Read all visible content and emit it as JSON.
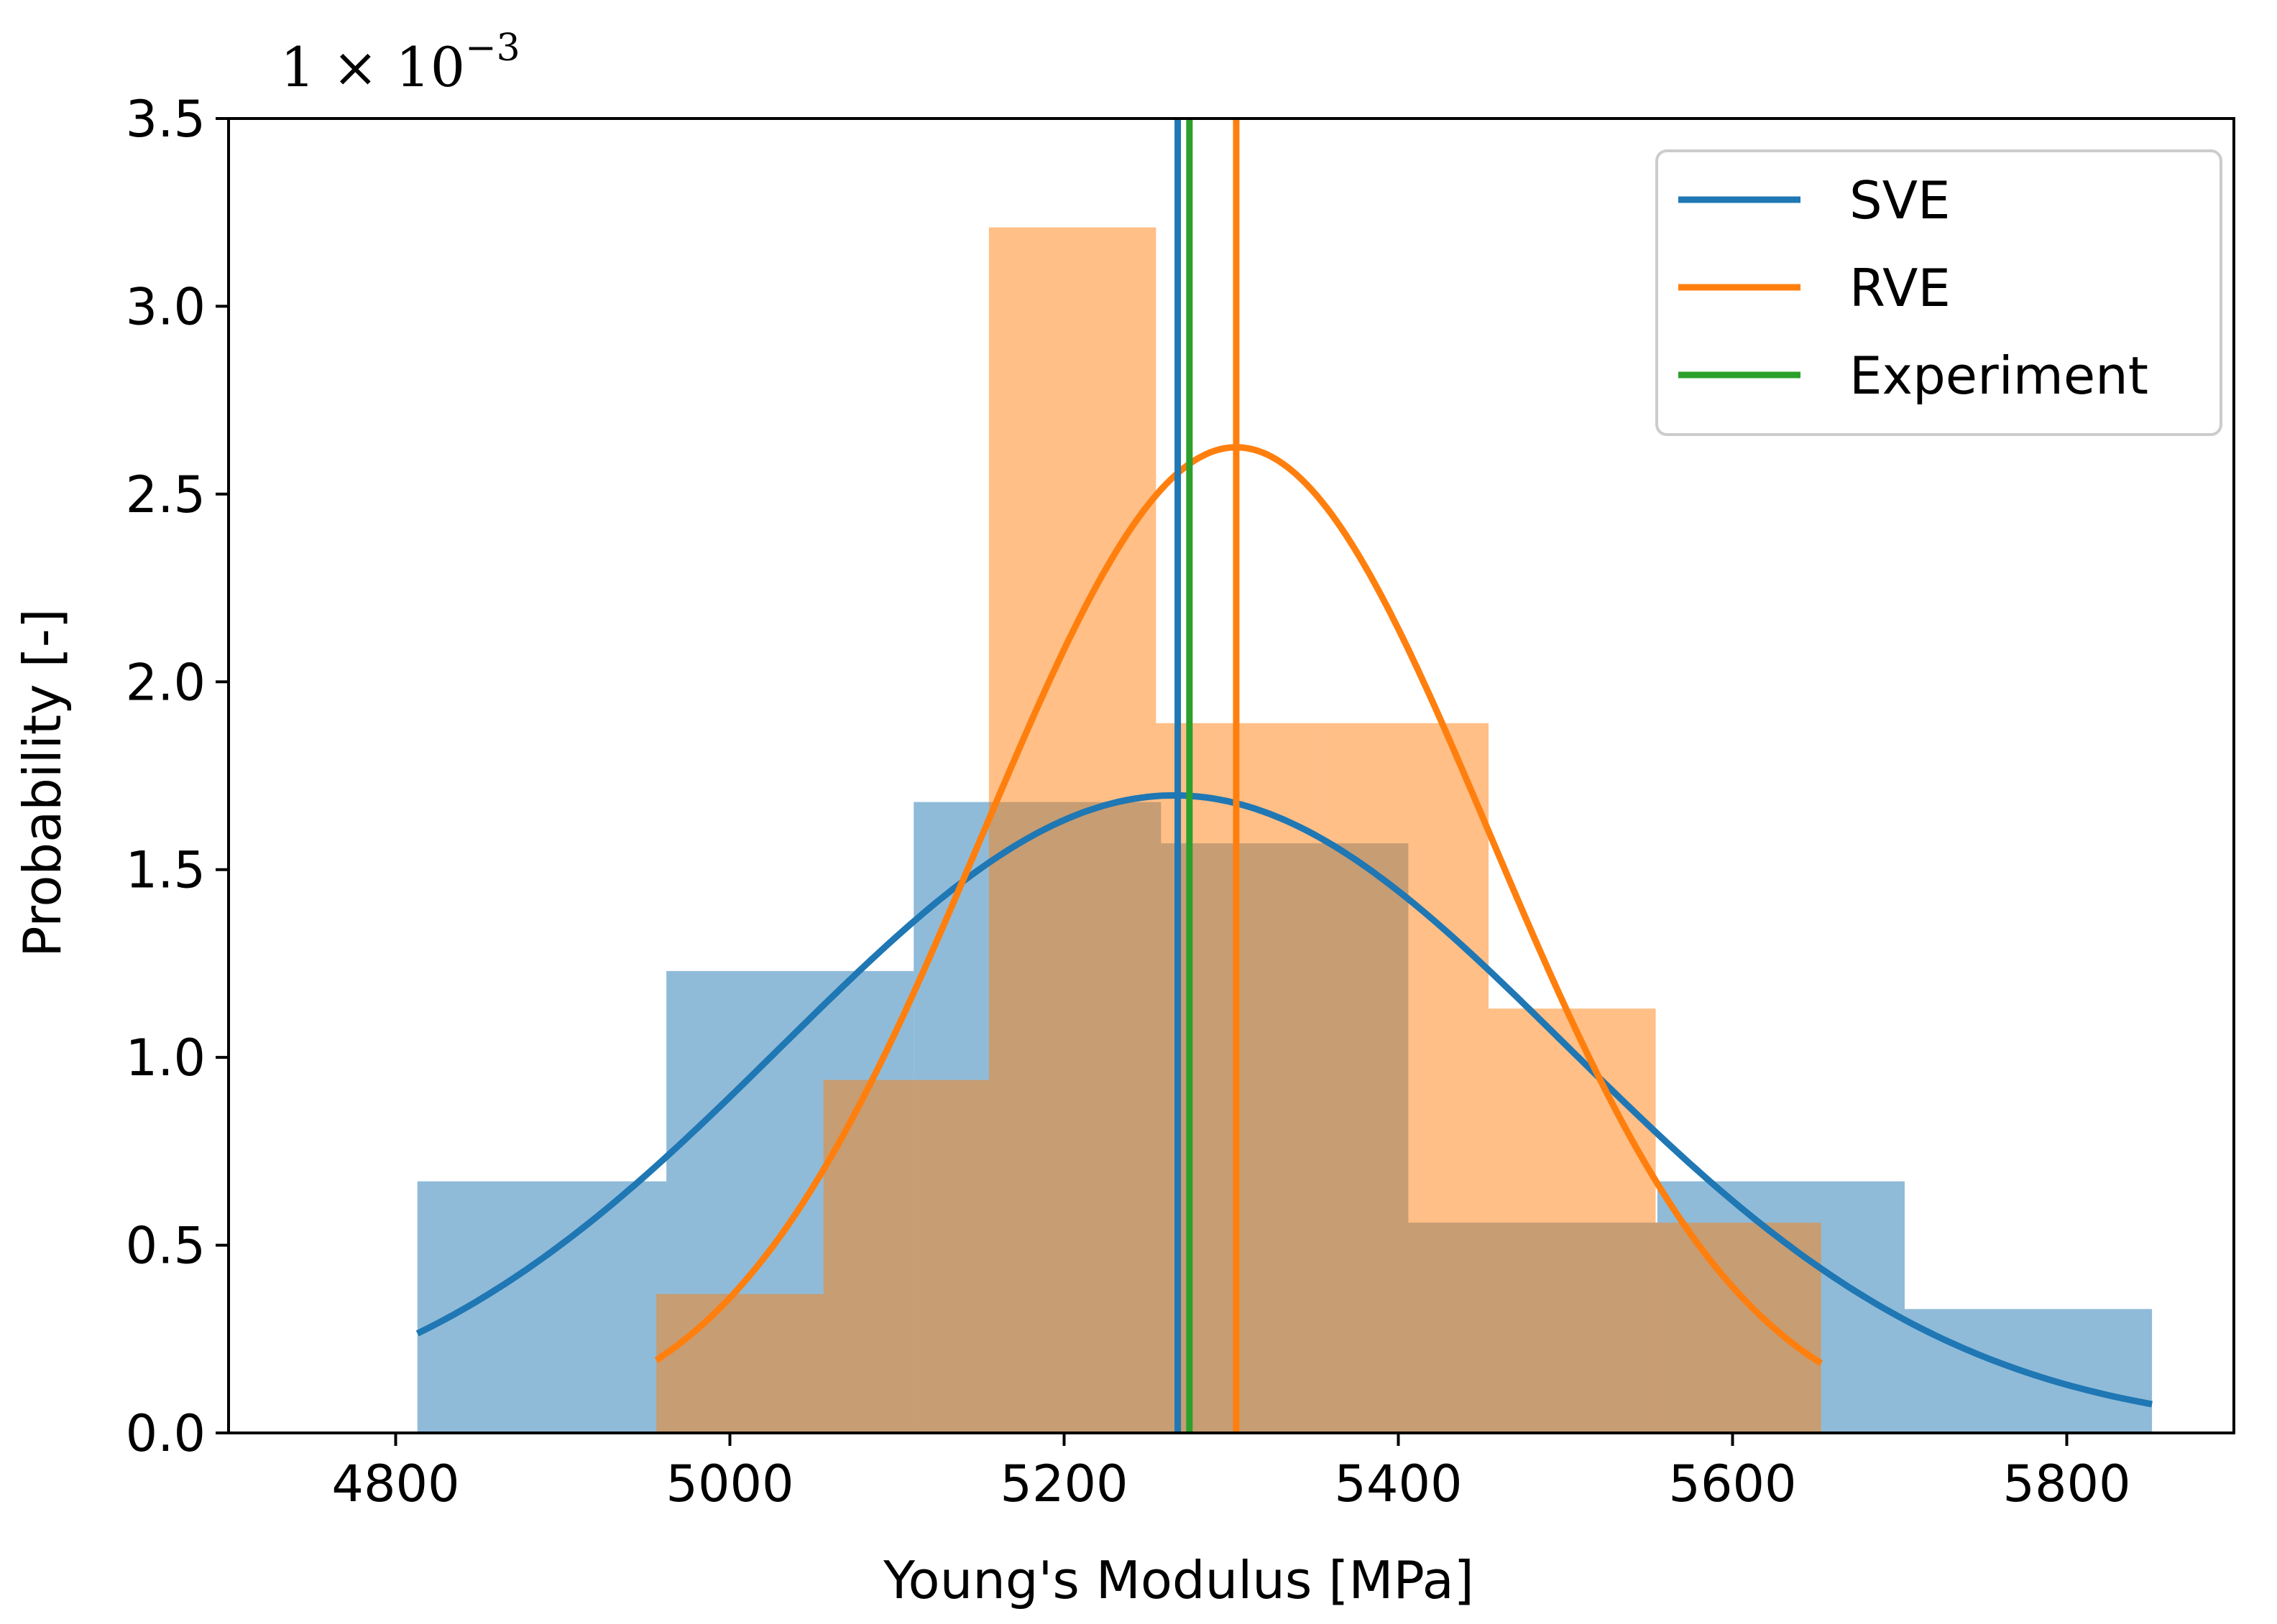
{
  "chart_data": {
    "type": "bar",
    "title": "",
    "xlabel": "Young's Modulus [MPa]",
    "ylabel": "Probability [-]",
    "scale_label": "1 × 10",
    "scale_exponent": "−3",
    "xlim": [
      4700,
      5900
    ],
    "ylim": [
      0,
      3.5
    ],
    "xticks": [
      4800,
      5000,
      5200,
      5400,
      5600,
      5800
    ],
    "yticks": [
      "0.0",
      "0.5",
      "1.0",
      "1.5",
      "2.0",
      "2.5",
      "3.0",
      "3.5"
    ],
    "colors": {
      "SVE": "#1f77b4",
      "RVE": "#ff7f0e",
      "Experiment": "#2ca02c"
    },
    "histograms": [
      {
        "name": "SVE",
        "bin_edges": [
          4813,
          4962,
          5110,
          5258,
          5406,
          5555,
          5703,
          5851
        ],
        "values": [
          0.67,
          1.23,
          1.68,
          1.57,
          0.56,
          0.67,
          0.33
        ]
      },
      {
        "name": "RVE",
        "bin_edges": [
          4956,
          5056,
          5155,
          5255,
          5355,
          5454,
          5554,
          5653
        ],
        "values": [
          0.37,
          0.94,
          3.21,
          1.89,
          1.89,
          1.13,
          0.56
        ]
      }
    ],
    "fit_curves": [
      {
        "name": "SVE",
        "mean": 5266,
        "std": 235,
        "x_range": [
          4813,
          5851
        ]
      },
      {
        "name": "RVE",
        "mean": 5303,
        "std": 152,
        "x_range": [
          4956,
          5653
        ]
      }
    ],
    "vertical_lines": [
      {
        "name": "SVE",
        "x": 5268
      },
      {
        "name": "Experiment",
        "x": 5275
      },
      {
        "name": "RVE",
        "x": 5303
      }
    ],
    "legend": {
      "placement": "top-right",
      "entries": [
        "SVE",
        "RVE",
        "Experiment"
      ]
    }
  }
}
